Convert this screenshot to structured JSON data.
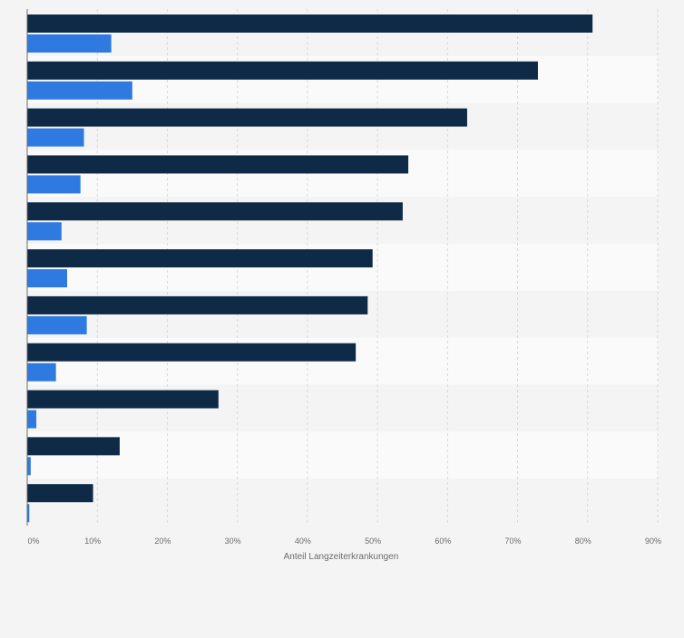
{
  "chart_data": {
    "type": "bar",
    "orientation": "horizontal",
    "categories": [
      "",
      "",
      "",
      "",
      "",
      "",
      "",
      "",
      "",
      "",
      ""
    ],
    "series": [
      {
        "color": "#0f2a46",
        "values": [
          80.7,
          72.9,
          62.8,
          54.4,
          53.6,
          49.3,
          48.6,
          46.9,
          27.3,
          13.2,
          9.4
        ]
      },
      {
        "color": "#2f7ae0",
        "values": [
          12.0,
          15.0,
          8.1,
          7.6,
          4.9,
          5.7,
          8.5,
          4.1,
          1.3,
          0.5,
          0.3
        ]
      }
    ],
    "xlim": [
      0,
      90
    ],
    "ticks": [
      "0%",
      "10%",
      "20%",
      "30%",
      "40%",
      "50%",
      "60%",
      "70%",
      "80%",
      "90%"
    ],
    "xlabel": "Anteil Langzeiterkrankungen",
    "ylabel": "",
    "grid": true,
    "legend": "none"
  }
}
